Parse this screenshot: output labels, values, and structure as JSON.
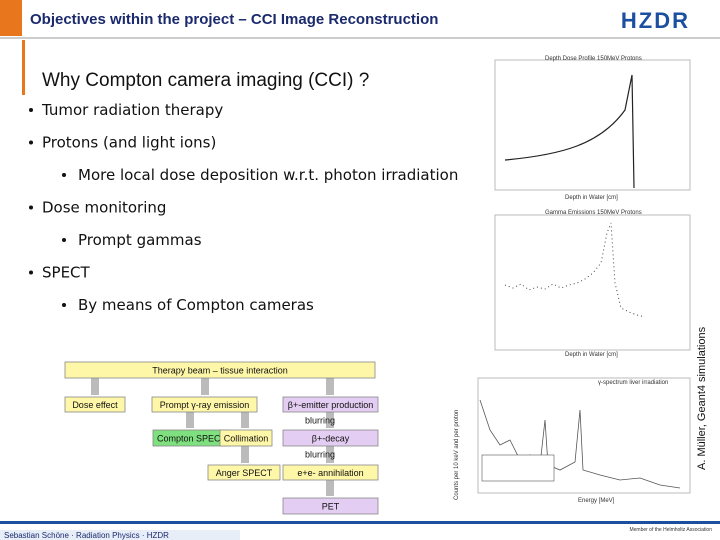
{
  "header": {
    "title": "Objectives within the project – CCI Image Reconstruction",
    "logo": "HZDR"
  },
  "subtitle": "Why Compton camera imaging (CCI) ?",
  "bullets": [
    {
      "text": "Tumor radiation therapy"
    },
    {
      "text": "Protons (and light ions)",
      "sub": "More local dose deposition w.r.t. photon irradiation"
    },
    {
      "text": "Dose monitoring",
      "sub": "Prompt gammas"
    },
    {
      "text": "SPECT",
      "sub": "By means of Compton cameras"
    }
  ],
  "diagram": {
    "nodes": [
      "Therapy beam – tissue interaction",
      "Dose effect",
      "Prompt γ-ray emission",
      "β+-emitter production",
      "Compton SPECT",
      "Collimation",
      "β+-decay",
      "Anger SPECT",
      "e+e- annihilation",
      "PET"
    ],
    "edge_labels": [
      "blurring",
      "blurring"
    ]
  },
  "plots": [
    {
      "title": "Depth Dose Profile 150MeV Protons",
      "x_label": "Depth in Water [cm]"
    },
    {
      "title": "Gamma Emissions 150MeV Protons",
      "x_label": "Depth in Water [cm]"
    },
    {
      "legend": "γ-spectrum liver irradiation",
      "x_label": "Energy [MeV]",
      "y_label": "Counts per 10 keV and per proton"
    }
  ],
  "credit": "A. Müller, Geant4 simulations",
  "footer": {
    "left": "Sebastian Schöne · Radiation Physics · HZDR",
    "right": "Member of the Helmholtz Association"
  }
}
